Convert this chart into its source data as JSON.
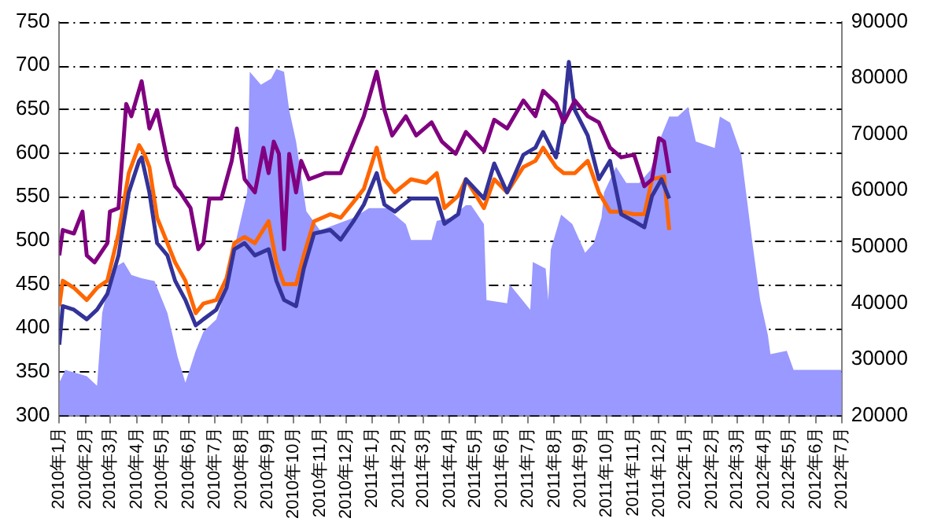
{
  "chart_data": {
    "type": "line",
    "grid": "y",
    "marker": "none",
    "xlim": [
      "2010-01-01",
      "2012-07-01"
    ],
    "xticks": [
      {
        "value": "2010-01-01",
        "label": "2010年1月"
      },
      {
        "value": "2010-02-01",
        "label": "2010年2月"
      },
      {
        "value": "2010-03-01",
        "label": "2010年3月"
      },
      {
        "value": "2010-04-01",
        "label": "2010年4月"
      },
      {
        "value": "2010-05-01",
        "label": "2010年5月"
      },
      {
        "value": "2010-06-01",
        "label": "2010年6月"
      },
      {
        "value": "2010-07-01",
        "label": "2010年7月"
      },
      {
        "value": "2010-08-01",
        "label": "2010年8月"
      },
      {
        "value": "2010-09-01",
        "label": "2010年9月"
      },
      {
        "value": "2010-10-01",
        "label": "2010年10月"
      },
      {
        "value": "2010-11-01",
        "label": "2010年11月"
      },
      {
        "value": "2010-12-01",
        "label": "2010年12月"
      },
      {
        "value": "2011-01-01",
        "label": "2011年1月"
      },
      {
        "value": "2011-02-01",
        "label": "2011年2月"
      },
      {
        "value": "2011-03-01",
        "label": "2011年3月"
      },
      {
        "value": "2011-04-01",
        "label": "2011年4月"
      },
      {
        "value": "2011-05-01",
        "label": "2011年5月"
      },
      {
        "value": "2011-06-01",
        "label": "2011年6月"
      },
      {
        "value": "2011-07-01",
        "label": "2011年7月"
      },
      {
        "value": "2011-08-01",
        "label": "2011年8月"
      },
      {
        "value": "2011-09-01",
        "label": "2011年9月"
      },
      {
        "value": "2011-10-01",
        "label": "2011年10月"
      },
      {
        "value": "2011-11-01",
        "label": "2011年11月"
      },
      {
        "value": "2011-12-01",
        "label": "2011年12月"
      },
      {
        "value": "2012-01-01",
        "label": "2012年1月"
      },
      {
        "value": "2012-02-01",
        "label": "2012年2月"
      },
      {
        "value": "2012-03-01",
        "label": "2012年3月"
      },
      {
        "value": "2012-04-01",
        "label": "2012年4月"
      },
      {
        "value": "2012-05-01",
        "label": "2012年5月"
      },
      {
        "value": "2012-06-01",
        "label": "2012年6月"
      },
      {
        "value": "2012-07-01",
        "label": "2012年7月"
      }
    ],
    "ylim": [
      300,
      750
    ],
    "yticks": [
      300,
      350,
      400,
      450,
      500,
      550,
      600,
      650,
      700,
      750
    ],
    "y2lim": [
      20000,
      90000
    ],
    "y2ticks": [
      20000,
      30000,
      40000,
      50000,
      60000,
      70000,
      80000,
      90000
    ],
    "series": [
      {
        "type": "area",
        "axis": "y2",
        "color": "#9999ff",
        "x": [
          "2010-01-01",
          "2010-01-08",
          "2010-02-02",
          "2010-02-14",
          "2010-02-20",
          "2010-03-04",
          "2010-03-17",
          "2010-03-26",
          "2010-04-07",
          "2010-04-22",
          "2010-05-07",
          "2010-05-19",
          "2010-05-28",
          "2010-06-09",
          "2010-06-18",
          "2010-07-03",
          "2010-07-15",
          "2010-07-27",
          "2010-08-08",
          "2010-08-11",
          "2010-08-24",
          "2010-09-05",
          "2010-09-11",
          "2010-09-20",
          "2010-09-26",
          "2010-10-04",
          "2010-10-16",
          "2010-11-01",
          "2010-12-10",
          "2010-12-28",
          "2011-01-18",
          "2011-02-09",
          "2011-02-15",
          "2011-03-11",
          "2011-03-17",
          "2011-04-02",
          "2011-04-20",
          "2011-04-26",
          "2011-05-11",
          "2011-05-14",
          "2011-06-07",
          "2011-06-10",
          "2011-07-04",
          "2011-07-07",
          "2011-07-22",
          "2011-07-25",
          "2011-07-28",
          "2011-08-09",
          "2011-08-22",
          "2011-09-06",
          "2011-09-16",
          "2011-09-25",
          "2011-09-28",
          "2011-10-12",
          "2011-10-24",
          "2011-11-08",
          "2011-11-21",
          "2011-12-04",
          "2011-12-13",
          "2011-12-23",
          "2012-01-04",
          "2012-01-13",
          "2012-02-04",
          "2012-02-10",
          "2012-02-22",
          "2012-03-06",
          "2012-03-19",
          "2012-03-28",
          "2012-04-06",
          "2012-04-09",
          "2012-04-28",
          "2012-05-06",
          "2012-07-01"
        ],
        "values": [
          25850,
          28100,
          27000,
          25300,
          38250,
          46100,
          47300,
          45000,
          44400,
          43900,
          38250,
          30400,
          25850,
          31500,
          34900,
          37100,
          42750,
          51800,
          59650,
          81100,
          78800,
          79900,
          81600,
          81100,
          74300,
          68700,
          56300,
          52900,
          55150,
          56850,
          56850,
          54000,
          51200,
          51200,
          54600,
          55150,
          57400,
          57400,
          54050,
          40500,
          39950,
          43300,
          38800,
          47300,
          46100,
          40500,
          49500,
          55700,
          54050,
          48950,
          50650,
          55150,
          59650,
          64200,
          61350,
          61350,
          63600,
          69800,
          73150,
          73150,
          74850,
          68700,
          67550,
          73150,
          72050,
          66400,
          50650,
          40500,
          34300,
          30900,
          31500,
          28100,
          28100
        ]
      },
      {
        "type": "line",
        "color": "#800080",
        "x": [
          "2010-01-01",
          "2010-01-05",
          "2010-01-18",
          "2010-01-28",
          "2010-02-02",
          "2010-02-11",
          "2010-02-26",
          "2010-03-01",
          "2010-03-11",
          "2010-03-20",
          "2010-03-26",
          "2010-04-07",
          "2010-04-16",
          "2010-04-25",
          "2010-05-07",
          "2010-05-16",
          "2010-05-22",
          "2010-06-03",
          "2010-06-12",
          "2010-06-18",
          "2010-06-25",
          "2010-07-09",
          "2010-07-21",
          "2010-07-27",
          "2010-08-05",
          "2010-08-17",
          "2010-08-27",
          "2010-09-02",
          "2010-09-08",
          "2010-09-14",
          "2010-09-20",
          "2010-09-26",
          "2010-10-04",
          "2010-10-10",
          "2010-10-19",
          "2010-11-07",
          "2010-11-25",
          "2010-12-10",
          "2010-12-22",
          "2011-01-06",
          "2011-01-15",
          "2011-01-24",
          "2011-02-09",
          "2011-02-21",
          "2011-03-11",
          "2011-03-23",
          "2011-04-08",
          "2011-04-20",
          "2011-05-11",
          "2011-05-23",
          "2011-06-07",
          "2011-06-26",
          "2011-07-10",
          "2011-07-19",
          "2011-08-03",
          "2011-08-12",
          "2011-08-25",
          "2011-09-09",
          "2011-09-22",
          "2011-10-05",
          "2011-10-18",
          "2011-11-02",
          "2011-11-14",
          "2011-11-23",
          "2011-12-01",
          "2011-12-07",
          "2011-12-13"
        ],
        "values": [
          483,
          512,
          508,
          533,
          483,
          475,
          497,
          533,
          537,
          656,
          642,
          682,
          628,
          649,
          591,
          562,
          555,
          537,
          490,
          497,
          548,
          548,
          591,
          628,
          570,
          555,
          606,
          577,
          613,
          599,
          490,
          599,
          555,
          591,
          570,
          577,
          577,
          613,
          642,
          693,
          649,
          620,
          642,
          620,
          635,
          613,
          599,
          624,
          602,
          638,
          628,
          660,
          642,
          671,
          657,
          635,
          660,
          642,
          635,
          606,
          595,
          598,
          562,
          570,
          617,
          613,
          577
        ]
      },
      {
        "type": "line",
        "color": "#333399",
        "x": [
          "2010-01-01",
          "2010-01-05",
          "2010-01-18",
          "2010-02-02",
          "2010-02-14",
          "2010-02-26",
          "2010-03-11",
          "2010-03-23",
          "2010-04-04",
          "2010-04-07",
          "2010-04-16",
          "2010-04-25",
          "2010-05-07",
          "2010-05-16",
          "2010-05-28",
          "2010-06-09",
          "2010-06-18",
          "2010-07-03",
          "2010-07-15",
          "2010-07-24",
          "2010-08-05",
          "2010-08-17",
          "2010-09-02",
          "2010-09-11",
          "2010-09-20",
          "2010-10-04",
          "2010-10-13",
          "2010-10-25",
          "2010-11-13",
          "2010-11-25",
          "2010-12-10",
          "2010-12-22",
          "2011-01-06",
          "2011-01-15",
          "2011-01-27",
          "2011-02-15",
          "2011-03-05",
          "2011-03-17",
          "2011-03-26",
          "2011-04-11",
          "2011-04-20",
          "2011-05-11",
          "2011-05-23",
          "2011-06-07",
          "2011-06-26",
          "2011-07-10",
          "2011-07-19",
          "2011-08-03",
          "2011-08-12",
          "2011-08-18",
          "2011-08-25",
          "2011-09-09",
          "2011-09-22",
          "2011-10-05",
          "2011-10-18",
          "2011-11-02",
          "2011-11-14",
          "2011-11-23",
          "2011-12-04",
          "2011-12-13"
        ],
        "values": [
          381,
          425,
          421,
          410,
          421,
          439,
          483,
          555,
          591,
          595,
          555,
          497,
          483,
          454,
          432,
          403,
          410,
          421,
          446,
          490,
          497,
          483,
          490,
          454,
          432,
          425,
          468,
          508,
          512,
          501,
          522,
          541,
          577,
          541,
          533,
          548,
          548,
          548,
          519,
          530,
          570,
          548,
          588,
          555,
          598,
          606,
          624,
          595,
          642,
          704,
          649,
          620,
          570,
          591,
          530,
          522,
          515,
          551,
          570,
          548
        ]
      },
      {
        "type": "line",
        "color": "#ff6600",
        "x": [
          "2010-01-01",
          "2010-01-05",
          "2010-01-18",
          "2010-02-02",
          "2010-02-14",
          "2010-02-26",
          "2010-03-11",
          "2010-03-23",
          "2010-04-04",
          "2010-04-10",
          "2010-04-16",
          "2010-04-25",
          "2010-05-07",
          "2010-05-16",
          "2010-05-28",
          "2010-06-09",
          "2010-06-18",
          "2010-07-03",
          "2010-07-15",
          "2010-07-24",
          "2010-08-05",
          "2010-08-17",
          "2010-09-02",
          "2010-09-11",
          "2010-09-20",
          "2010-10-04",
          "2010-10-13",
          "2010-10-25",
          "2010-11-13",
          "2010-11-25",
          "2010-12-10",
          "2010-12-22",
          "2011-01-06",
          "2011-01-15",
          "2011-01-27",
          "2011-02-15",
          "2011-03-05",
          "2011-03-17",
          "2011-03-26",
          "2011-04-11",
          "2011-04-20",
          "2011-05-11",
          "2011-05-23",
          "2011-06-07",
          "2011-06-26",
          "2011-07-10",
          "2011-07-19",
          "2011-08-03",
          "2011-08-12",
          "2011-08-25",
          "2011-09-09",
          "2011-09-22",
          "2011-10-05",
          "2011-10-18",
          "2011-11-02",
          "2011-11-14",
          "2011-11-23",
          "2011-12-07",
          "2011-12-13"
        ],
        "values": [
          425,
          454,
          446,
          432,
          446,
          454,
          508,
          577,
          609,
          599,
          584,
          526,
          497,
          475,
          454,
          417,
          428,
          432,
          457,
          497,
          504,
          497,
          522,
          475,
          450,
          450,
          483,
          522,
          530,
          526,
          544,
          559,
          606,
          570,
          555,
          570,
          566,
          577,
          537,
          551,
          570,
          537,
          570,
          555,
          584,
          591,
          606,
          584,
          577,
          577,
          591,
          555,
          533,
          533,
          530,
          530,
          570,
          573,
          512
        ]
      }
    ]
  }
}
